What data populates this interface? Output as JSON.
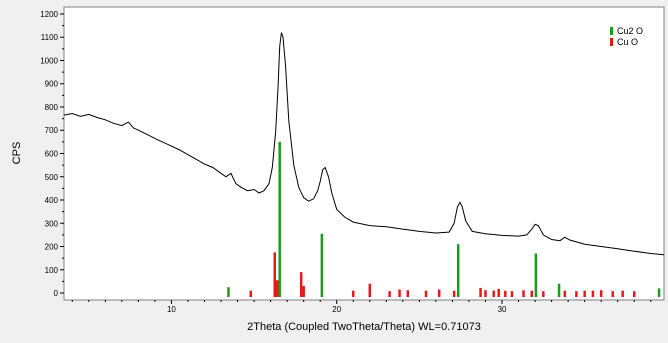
{
  "chart_data": {
    "type": "line",
    "xlabel": "2Theta (Coupled TwoTheta/Theta) WL=0.71073",
    "ylabel": "CPS",
    "xlim": [
      3.5,
      39.8
    ],
    "ylim": [
      -30,
      1230
    ],
    "grid": false,
    "legend_position": "top-right",
    "x_ticks": [
      10,
      20,
      30
    ],
    "y_ticks": [
      0,
      100,
      200,
      300,
      400,
      500,
      600,
      700,
      800,
      900,
      1000,
      1100,
      1200
    ],
    "series": [
      {
        "name": "",
        "kind": "line",
        "color": "#000000",
        "points": [
          [
            3.5,
            765
          ],
          [
            4.0,
            772
          ],
          [
            4.5,
            760
          ],
          [
            5.0,
            768
          ],
          [
            5.5,
            755
          ],
          [
            6.0,
            745
          ],
          [
            6.5,
            730
          ],
          [
            7.0,
            720
          ],
          [
            7.4,
            735
          ],
          [
            7.7,
            710
          ],
          [
            8.0,
            700
          ],
          [
            8.5,
            683
          ],
          [
            9.0,
            665
          ],
          [
            9.5,
            648
          ],
          [
            10.0,
            632
          ],
          [
            10.5,
            615
          ],
          [
            11.0,
            595
          ],
          [
            11.5,
            575
          ],
          [
            12.0,
            555
          ],
          [
            12.5,
            540
          ],
          [
            13.0,
            515
          ],
          [
            13.3,
            500
          ],
          [
            13.6,
            515
          ],
          [
            13.9,
            470
          ],
          [
            14.2,
            455
          ],
          [
            14.6,
            440
          ],
          [
            15.0,
            445
          ],
          [
            15.3,
            430
          ],
          [
            15.6,
            440
          ],
          [
            15.9,
            470
          ],
          [
            16.1,
            540
          ],
          [
            16.3,
            690
          ],
          [
            16.45,
            880
          ],
          [
            16.55,
            1060
          ],
          [
            16.65,
            1120
          ],
          [
            16.75,
            1100
          ],
          [
            16.9,
            980
          ],
          [
            17.1,
            740
          ],
          [
            17.4,
            550
          ],
          [
            17.7,
            455
          ],
          [
            18.0,
            410
          ],
          [
            18.3,
            395
          ],
          [
            18.6,
            405
          ],
          [
            18.85,
            440
          ],
          [
            19.0,
            480
          ],
          [
            19.15,
            530
          ],
          [
            19.3,
            540
          ],
          [
            19.5,
            500
          ],
          [
            19.7,
            430
          ],
          [
            20.0,
            360
          ],
          [
            20.5,
            325
          ],
          [
            21.0,
            305
          ],
          [
            22.0,
            290
          ],
          [
            23.0,
            285
          ],
          [
            24.0,
            275
          ],
          [
            25.0,
            265
          ],
          [
            26.0,
            258
          ],
          [
            26.8,
            262
          ],
          [
            27.1,
            300
          ],
          [
            27.3,
            370
          ],
          [
            27.45,
            390
          ],
          [
            27.6,
            370
          ],
          [
            27.8,
            310
          ],
          [
            28.2,
            265
          ],
          [
            29.0,
            255
          ],
          [
            30.0,
            248
          ],
          [
            31.0,
            245
          ],
          [
            31.5,
            250
          ],
          [
            31.8,
            275
          ],
          [
            32.0,
            295
          ],
          [
            32.2,
            290
          ],
          [
            32.5,
            250
          ],
          [
            33.0,
            230
          ],
          [
            33.5,
            225
          ],
          [
            33.8,
            240
          ],
          [
            34.1,
            228
          ],
          [
            35.0,
            210
          ],
          [
            36.0,
            200
          ],
          [
            37.0,
            190
          ],
          [
            38.0,
            180
          ],
          [
            39.0,
            170
          ],
          [
            39.8,
            165
          ]
        ]
      },
      {
        "name": "Cu2 O",
        "kind": "stick",
        "color": "#1a9e1a",
        "x": [
          13.45,
          16.55,
          19.1,
          27.35,
          32.05,
          33.45,
          39.5
        ],
        "y": [
          25,
          650,
          255,
          210,
          170,
          40,
          20
        ]
      },
      {
        "name": "Cu O",
        "kind": "stick",
        "color": "#e41a1a",
        "x": [
          14.8,
          16.25,
          16.4,
          17.85,
          18.0,
          21.0,
          22.0,
          23.2,
          23.8,
          24.3,
          25.4,
          26.2,
          27.1,
          28.7,
          29.0,
          29.5,
          29.8,
          30.2,
          30.6,
          31.3,
          31.8,
          32.5,
          33.8,
          34.5,
          35.0,
          35.5,
          36.0,
          36.7,
          37.3,
          38.0
        ],
        "y": [
          10,
          175,
          55,
          90,
          30,
          10,
          40,
          8,
          15,
          12,
          10,
          15,
          10,
          22,
          12,
          10,
          18,
          10,
          8,
          12,
          10,
          8,
          10,
          8,
          10,
          10,
          12,
          8,
          10,
          8
        ]
      }
    ]
  }
}
